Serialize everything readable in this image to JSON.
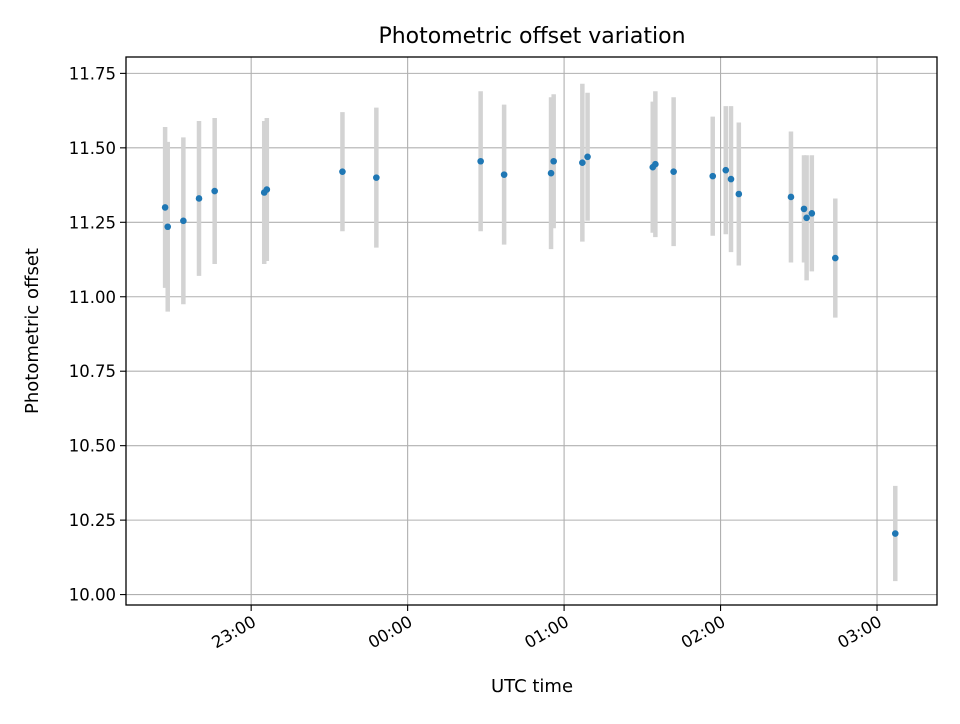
{
  "chart_data": {
    "type": "scatter",
    "title": "Photometric offset variation",
    "xlabel": "UTC time",
    "ylabel": "Photometric offset",
    "x_axis_type": "time",
    "xlim": [
      "22:12",
      "03:23"
    ],
    "ylim": [
      9.965,
      11.805
    ],
    "yticks": [
      10.0,
      10.25,
      10.5,
      10.75,
      11.0,
      11.25,
      11.5,
      11.75
    ],
    "ytick_labels": [
      "10.00",
      "10.25",
      "10.50",
      "10.75",
      "11.00",
      "11.25",
      "11.50",
      "11.75"
    ],
    "xticks": [
      "23:00",
      "00:00",
      "01:00",
      "02:00",
      "03:00"
    ],
    "xtick_labels": [
      "23:00",
      "00:00",
      "01:00",
      "02:00",
      "03:00"
    ],
    "grid": true,
    "marker_color": "#1f77b4",
    "errorbar_color": "#d3d3d3",
    "points": [
      {
        "x": "22:27",
        "y": 11.3,
        "err": 0.27
      },
      {
        "x": "22:28",
        "y": 11.235,
        "err": 0.285
      },
      {
        "x": "22:34",
        "y": 11.255,
        "err": 0.28
      },
      {
        "x": "22:40",
        "y": 11.33,
        "err": 0.26
      },
      {
        "x": "22:46",
        "y": 11.355,
        "err": 0.245
      },
      {
        "x": "23:05",
        "y": 11.35,
        "err": 0.24
      },
      {
        "x": "23:06",
        "y": 11.36,
        "err": 0.24
      },
      {
        "x": "23:35",
        "y": 11.42,
        "err": 0.2
      },
      {
        "x": "23:48",
        "y": 11.4,
        "err": 0.235
      },
      {
        "x": "00:28",
        "y": 11.455,
        "err": 0.235
      },
      {
        "x": "00:37",
        "y": 11.41,
        "err": 0.235
      },
      {
        "x": "00:55",
        "y": 11.415,
        "err": 0.255
      },
      {
        "x": "00:56",
        "y": 11.455,
        "err": 0.225
      },
      {
        "x": "01:07",
        "y": 11.45,
        "err": 0.265
      },
      {
        "x": "01:09",
        "y": 11.47,
        "err": 0.215
      },
      {
        "x": "01:34",
        "y": 11.435,
        "err": 0.22
      },
      {
        "x": "01:35",
        "y": 11.445,
        "err": 0.245
      },
      {
        "x": "01:42",
        "y": 11.42,
        "err": 0.25
      },
      {
        "x": "01:57",
        "y": 11.405,
        "err": 0.2
      },
      {
        "x": "02:02",
        "y": 11.425,
        "err": 0.215
      },
      {
        "x": "02:04",
        "y": 11.395,
        "err": 0.245
      },
      {
        "x": "02:07",
        "y": 11.345,
        "err": 0.24
      },
      {
        "x": "02:27",
        "y": 11.335,
        "err": 0.22
      },
      {
        "x": "02:32",
        "y": 11.295,
        "err": 0.18
      },
      {
        "x": "02:33",
        "y": 11.265,
        "err": 0.21
      },
      {
        "x": "02:35",
        "y": 11.28,
        "err": 0.195
      },
      {
        "x": "02:44",
        "y": 11.13,
        "err": 0.2
      },
      {
        "x": "03:07",
        "y": 10.205,
        "err": 0.16
      }
    ]
  }
}
